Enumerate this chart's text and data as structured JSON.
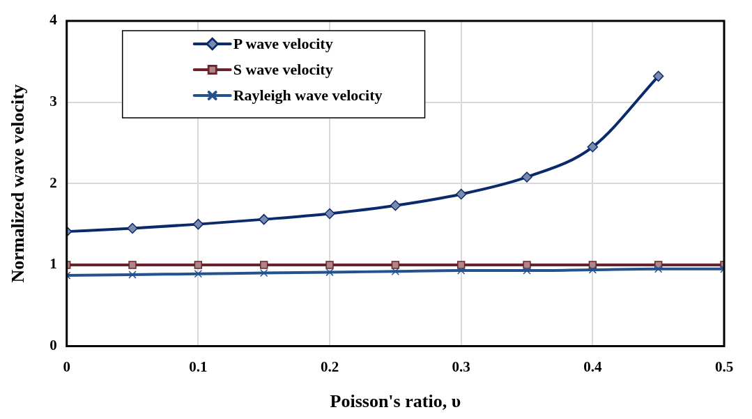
{
  "chart_data": {
    "type": "line",
    "xlabel": "Poisson's ratio, υ",
    "ylabel": "Normalized wave velocity",
    "x": [
      0,
      0.05,
      0.1,
      0.15,
      0.2,
      0.25,
      0.3,
      0.35,
      0.4,
      0.45,
      0.5
    ],
    "series": [
      {
        "name": "P wave velocity",
        "color": "#0b2a6b",
        "marker": "diamond",
        "values": [
          1.41,
          1.45,
          1.5,
          1.56,
          1.63,
          1.73,
          1.87,
          2.08,
          2.45,
          3.32,
          null
        ]
      },
      {
        "name": "S wave velocity",
        "color": "#6b2327",
        "marker": "square",
        "values": [
          1,
          1,
          1,
          1,
          1,
          1,
          1,
          1,
          1,
          1,
          1
        ]
      },
      {
        "name": "Rayleigh wave velocity",
        "color": "#24528e",
        "marker": "cross",
        "values": [
          0.87,
          0.88,
          0.89,
          0.9,
          0.91,
          0.92,
          0.93,
          0.93,
          0.94,
          0.95,
          0.95
        ]
      }
    ],
    "xlim": [
      0,
      0.5
    ],
    "xticks": [
      0,
      0.1,
      0.2,
      0.3,
      0.4,
      0.5
    ],
    "ylim": [
      0,
      4
    ],
    "yticks": [
      0,
      1,
      2,
      3,
      4
    ],
    "grid": true,
    "legend": "top left",
    "line_style": "solid"
  }
}
